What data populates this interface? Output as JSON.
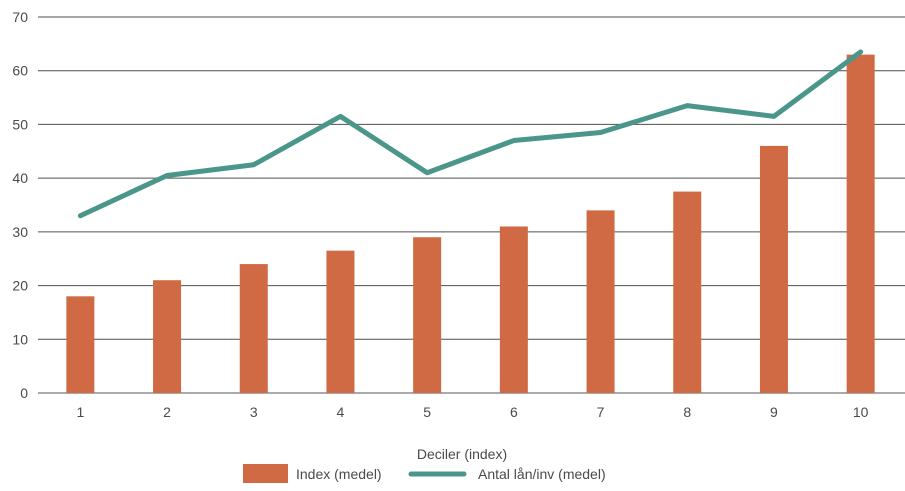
{
  "chart_data": {
    "type": "bar",
    "categories": [
      "1",
      "2",
      "3",
      "4",
      "5",
      "6",
      "7",
      "8",
      "9",
      "10"
    ],
    "series": [
      {
        "name": "Index (medel)",
        "type": "bar",
        "color": "#d06a44",
        "values": [
          18,
          21,
          24,
          26.5,
          29,
          31,
          34,
          37.5,
          46,
          63
        ]
      },
      {
        "name": "Antal lån/inv (medel)",
        "type": "line",
        "color": "#4a968a",
        "values": [
          33,
          40.5,
          42.5,
          51.5,
          41,
          47,
          48.5,
          53.5,
          51.5,
          63.5
        ]
      }
    ],
    "xlabel": "Deciler (index)",
    "ylabel": "",
    "ylim": [
      0,
      70
    ],
    "yticks": [
      0,
      10,
      20,
      30,
      40,
      50,
      60,
      70
    ],
    "grid": true,
    "legend_position": "bottom-center"
  }
}
